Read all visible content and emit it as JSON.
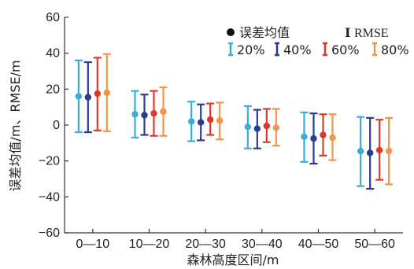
{
  "chart_data": {
    "type": "scatter",
    "title": "",
    "xlabel": "森林高度区间/m",
    "ylabel": "误差均值/m、RMSE/m",
    "ylim": [
      -60,
      60
    ],
    "yticks": [
      -60,
      -40,
      -20,
      0,
      20,
      40,
      60
    ],
    "categories": [
      "0—10",
      "10—20",
      "20—30",
      "30—40",
      "40—50",
      "50—60"
    ],
    "legend": {
      "placement": "top-right",
      "mean_label": "误差均值",
      "rmse_symbol": "I",
      "rmse_label": "RMSE"
    },
    "series": [
      {
        "name": "20%",
        "color": "#3aaed8",
        "mean": [
          16,
          6,
          2,
          -1,
          -6.5,
          -14.5
        ],
        "lower": [
          -4,
          -7,
          -9,
          -13,
          -20.5,
          -34
        ],
        "upper": [
          36,
          19,
          13,
          10.5,
          7,
          4.5
        ]
      },
      {
        "name": "40%",
        "color": "#2b3d8f",
        "mean": [
          15.5,
          5.5,
          1.5,
          -2,
          -7.5,
          -15.5
        ],
        "lower": [
          -4,
          -5.5,
          -8.5,
          -13,
          -21.5,
          -35.5
        ],
        "upper": [
          35,
          17,
          11.5,
          8.5,
          6.5,
          4
        ]
      },
      {
        "name": "60%",
        "color": "#d93a2b",
        "mean": [
          17.5,
          6.5,
          3,
          -0.5,
          -5.5,
          -14
        ],
        "lower": [
          -3,
          -6,
          -5.5,
          -9.5,
          -17,
          -30.5
        ],
        "upper": [
          37.5,
          19,
          12,
          9,
          6,
          3
        ]
      },
      {
        "name": "80%",
        "color": "#f0964a",
        "mean": [
          18,
          7.5,
          2.5,
          -1.5,
          -7,
          -14.5
        ],
        "lower": [
          -3.5,
          -6,
          -8,
          -11.5,
          -19.5,
          -33
        ],
        "upper": [
          39.5,
          21,
          12.5,
          9,
          6,
          4
        ]
      }
    ]
  }
}
